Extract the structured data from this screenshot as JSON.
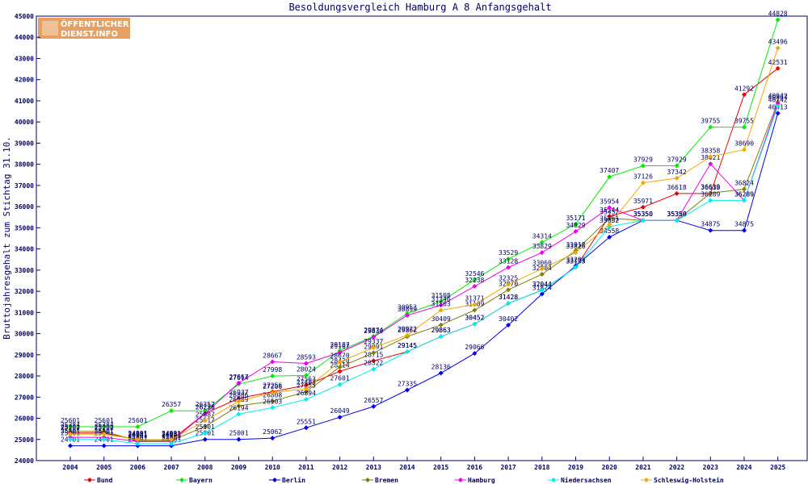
{
  "logo": {
    "line1": "ÖFFENTLICHER",
    "line2": "DIENST.INFO",
    "bg": "#e8a060",
    "fg": "#ffffff"
  },
  "chart_data": {
    "type": "line",
    "title": "Besoldungsvergleich Hamburg A 8 Anfangsgehalt",
    "xlabel": "",
    "ylabel": "Bruttojahresgehalt zum Stichtag 31.10.",
    "ylim": [
      24000,
      45000
    ],
    "yticks": [
      24000,
      25000,
      26000,
      27000,
      28000,
      29000,
      30000,
      31000,
      32000,
      33000,
      34000,
      35000,
      36000,
      37000,
      38000,
      39000,
      40000,
      41000,
      42000,
      43000,
      44000,
      45000
    ],
    "categories": [
      "2004",
      "2005",
      "2006",
      "2007",
      "2008",
      "2009",
      "2010",
      "2011",
      "2012",
      "2013",
      "2014",
      "2015",
      "2016",
      "2017",
      "2018",
      "2019",
      "2020",
      "2021",
      "2022",
      "2023",
      "2024",
      "2025"
    ],
    "grid": false,
    "legend_position": "bottom",
    "series": [
      {
        "name": "Bund",
        "color": "#ee0000",
        "values": [
          25304,
          25304,
          24981,
          24981,
          26230,
          26937,
          27256,
          27563,
          28214,
          28715,
          29145,
          29863,
          30452,
          31428,
          32044,
          33133,
          35544,
          35971,
          36618,
          36618,
          41292,
          42531
        ]
      },
      {
        "name": "Bayern",
        "color": "#00ee00",
        "values": [
          25601,
          25601,
          25601,
          26357,
          26357,
          27614,
          27998,
          28024,
          29187,
          29874,
          30953,
          31508,
          32546,
          33529,
          34314,
          35171,
          37407,
          37929,
          37929,
          39755,
          39755,
          44828
        ]
      },
      {
        "name": "Berlin",
        "color": "#0000ee",
        "values": [
          24701,
          24701,
          24701,
          24701,
          25001,
          25001,
          25062,
          25551,
          26049,
          26557,
          27335,
          28136,
          29066,
          30402,
          31874,
          33201,
          34558,
          35350,
          35350,
          34875,
          34875,
          40413
        ]
      },
      {
        "name": "Bremen",
        "color": "#808000",
        "values": [
          25384,
          25384,
          24941,
          24941,
          25617,
          26589,
          26808,
          27255,
          28420,
          29091,
          29862,
          30409,
          31109,
          32070,
          32804,
          33918,
          35452,
          35350,
          35350,
          36639,
          36824,
          40942
        ]
      },
      {
        "name": "Hamburg",
        "color": "#ee00ee",
        "values": [
          25101,
          25101,
          24901,
          24901,
          26226,
          27667,
          28667,
          28593,
          29107,
          29830,
          30859,
          31346,
          32238,
          33128,
          33829,
          34829,
          35954,
          35350,
          35350,
          38021,
          36289,
          40867
        ]
      },
      {
        "name": "Niedersachsen",
        "color": "#00eeee",
        "values": [
          25001,
          25001,
          24801,
          24801,
          25301,
          26194,
          26503,
          26894,
          27601,
          28322,
          29145,
          29863,
          30452,
          31428,
          32044,
          33133,
          35052,
          35350,
          35350,
          36289,
          36289,
          40742
        ]
      },
      {
        "name": "Schleswig-Holstein",
        "color": "#f0a800",
        "values": [
          25252,
          25252,
          24991,
          24991,
          25887,
          26806,
          27206,
          27403,
          28670,
          29337,
          29922,
          31103,
          31371,
          32325,
          33060,
          33826,
          35151,
          37126,
          37342,
          38358,
          38690,
          43496
        ]
      }
    ]
  }
}
